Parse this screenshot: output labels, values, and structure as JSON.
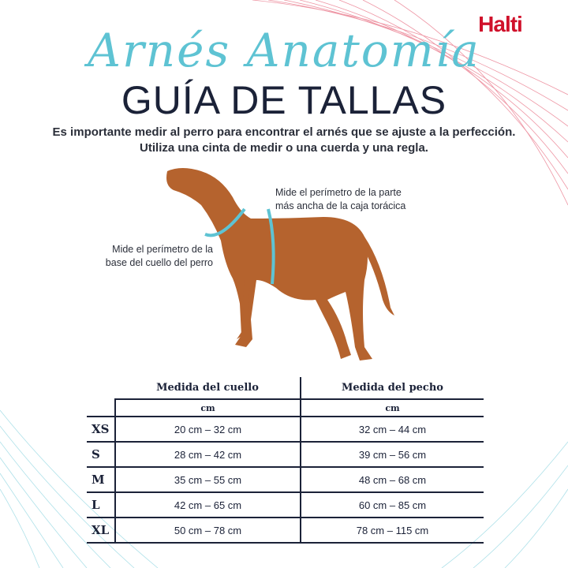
{
  "brand": {
    "logo": "Halti",
    "color": "#d0112b"
  },
  "title": {
    "script": "Arnés Anatomía",
    "main": "GUÍA DE TALLAS",
    "script_color": "#5ec3d3"
  },
  "intro": {
    "line1": "Es importante medir al perro para encontrar el arnés que se ajuste a la perfección.",
    "line2": "Utiliza una cinta de medir o una cuerda y una regla."
  },
  "annotations": {
    "chest": {
      "line1": "Mide el perímetro de la parte",
      "line2": "más ancha de la caja torácica"
    },
    "neck": {
      "line1": "Mide el perímetro de la",
      "line2": "base del cuello del perro"
    }
  },
  "table": {
    "headers": [
      "Medida del cuello",
      "Medida del pecho"
    ],
    "units": [
      "cm",
      "cm"
    ],
    "rows": [
      {
        "size": "XS",
        "neck": "20 cm – 32 cm",
        "chest": "32 cm – 44 cm"
      },
      {
        "size": "S",
        "neck": "28 cm – 42 cm",
        "chest": "39 cm – 56 cm"
      },
      {
        "size": "M",
        "neck": "35 cm – 55 cm",
        "chest": "48 cm – 68 cm"
      },
      {
        "size": "L",
        "neck": "42 cm – 65 cm",
        "chest": "60 cm – 85 cm"
      },
      {
        "size": "XL",
        "neck": "50 cm – 78 cm",
        "chest": "78 cm – 115 cm"
      }
    ]
  }
}
